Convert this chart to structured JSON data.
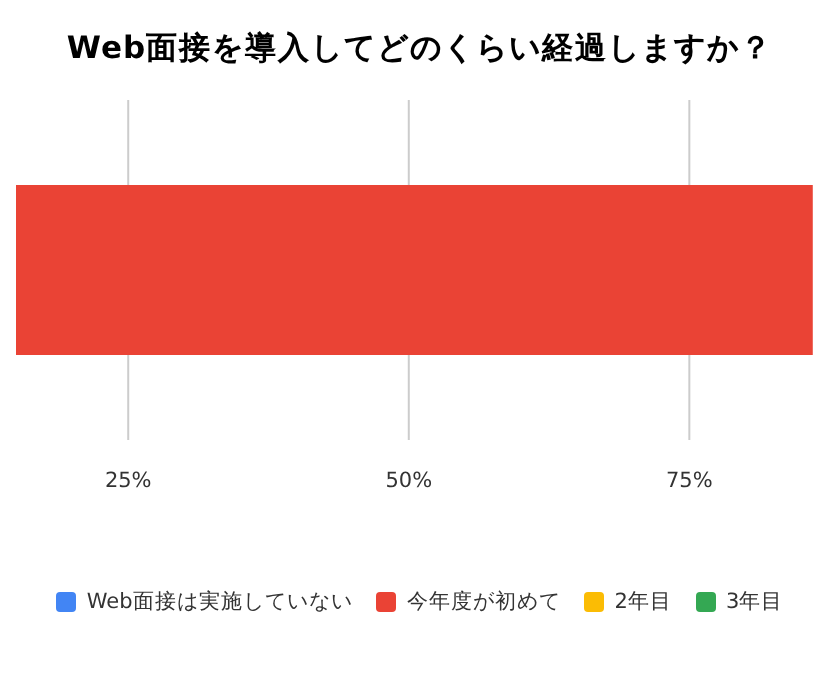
{
  "chart_data": {
    "type": "bar",
    "orientation": "horizontal",
    "title": "Web面接を導入してどのくらい経過しますか？",
    "categories": [
      null
    ],
    "series": [
      {
        "name": "Web面接は実施していない",
        "color": "#4285f4",
        "values": [
          null
        ]
      },
      {
        "name": "今年度が初めて",
        "color": "#ea4335",
        "values": [
          86
        ]
      },
      {
        "name": "2年目",
        "color": "#fbbc04",
        "values": [
          null
        ]
      },
      {
        "name": "3年目",
        "color": "#34a853",
        "values": [
          null
        ]
      }
    ],
    "xlim": [
      15,
      87
    ],
    "xticks": [
      {
        "value": 25,
        "label": "25%"
      },
      {
        "value": 50,
        "label": "50%"
      },
      {
        "value": 75,
        "label": "75%"
      }
    ],
    "grid": "x",
    "legend": "bottom"
  }
}
